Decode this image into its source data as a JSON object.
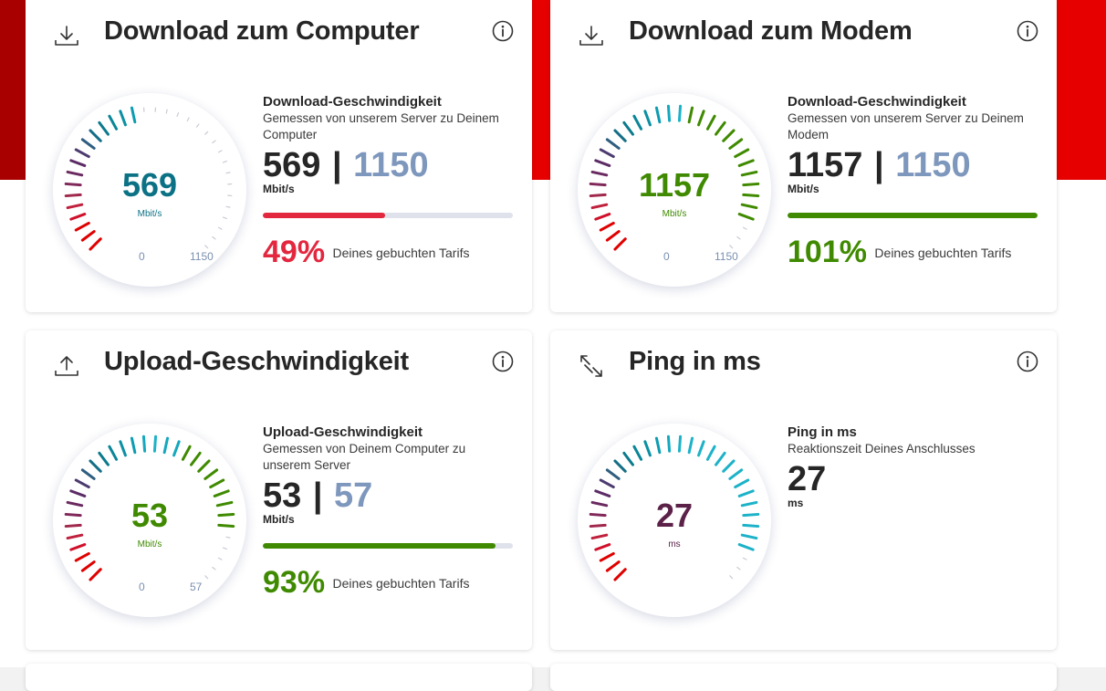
{
  "colors": {
    "brand_red": "#e60000",
    "teal": "#0b7285",
    "green": "#3f8a00",
    "plum": "#5b2148",
    "bar_red": "#e3273e",
    "ref_blue": "#7e97bd"
  },
  "cards": [
    {
      "title": "Download zum Computer",
      "icon": "download-icon",
      "metric_title": "Download-Geschwindigkeit",
      "description": "Gemessen von unserem Server zu Deinem Computer",
      "value": "569",
      "separator": "|",
      "reference": "1150",
      "unit": "Mbit/s",
      "gauge_unit": "Mbit/s",
      "gauge_min": "0",
      "gauge_max": "1150",
      "fill_fraction": 0.49,
      "percent": "49%",
      "percent_label": "Deines gebuchten Tarifs",
      "value_color": "#0b7285",
      "percent_color": "#e3273e",
      "bar_color": "#e3273e"
    },
    {
      "title": "Download zum Modem",
      "icon": "download-icon",
      "metric_title": "Download-Geschwindigkeit",
      "description": "Gemessen von unserem Server zu Deinem Modem",
      "value": "1157",
      "separator": "|",
      "reference": "1150",
      "unit": "Mbit/s",
      "gauge_unit": "Mbit/s",
      "gauge_min": "0",
      "gauge_max": "1150",
      "fill_fraction": 1.0,
      "percent": "101%",
      "percent_label": "Deines gebuchten Tarifs",
      "value_color": "#3f8a00",
      "percent_color": "#3f8a00",
      "bar_color": "#3f8a00"
    },
    {
      "title": "Upload-Geschwindigkeit",
      "icon": "upload-icon",
      "metric_title": "Upload-Geschwindigkeit",
      "description": "Gemessen von Deinem Computer zu unserem Server",
      "value": "53",
      "separator": "|",
      "reference": "57",
      "unit": "Mbit/s",
      "gauge_unit": "Mbit/s",
      "gauge_min": "0",
      "gauge_max": "57",
      "fill_fraction": 0.93,
      "percent": "93%",
      "percent_label": "Deines gebuchten Tarifs",
      "value_color": "#3f8a00",
      "percent_color": "#3f8a00",
      "bar_color": "#3f8a00"
    },
    {
      "title": "Ping in ms",
      "icon": "ping-arrows-icon",
      "metric_title": "Ping in ms",
      "description": "Reaktionszeit Deines Anschlusses",
      "value": "27",
      "unit": "ms",
      "gauge_unit": "ms",
      "value_color": "#5b2148"
    }
  ],
  "gauges": [
    {
      "lit_ticks": 16
    },
    {
      "lit_ticks": 31
    },
    {
      "lit_ticks": 29
    },
    {
      "lit_ticks": 31
    }
  ]
}
